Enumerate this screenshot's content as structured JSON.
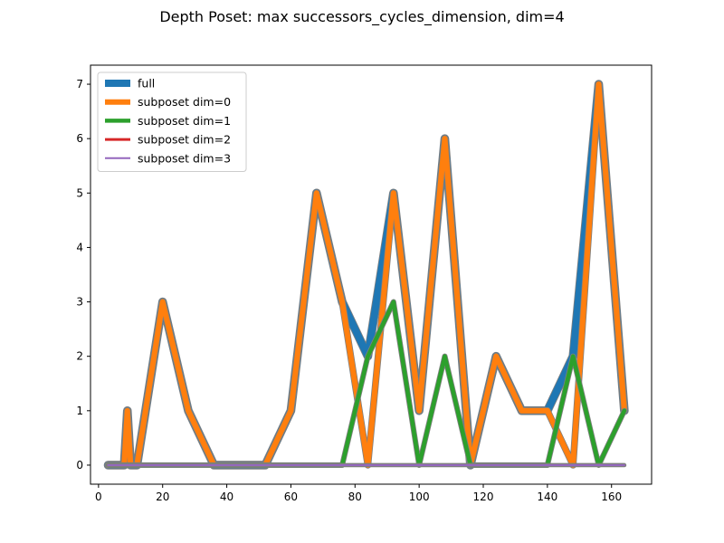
{
  "chart_data": {
    "type": "line",
    "title": "Depth Poset: max successors_cycles_dimension, dim=4",
    "xlabel": "",
    "ylabel": "",
    "xlim": [
      -2.5,
      172.5
    ],
    "ylim": [
      -0.35,
      7.35
    ],
    "xticks": [
      0,
      20,
      40,
      60,
      80,
      100,
      120,
      140,
      160
    ],
    "yticks": [
      0,
      1,
      2,
      3,
      4,
      5,
      6,
      7
    ],
    "grid": false,
    "legend_position": "upper-left",
    "series": [
      {
        "name": "full",
        "color": "#1f77b4",
        "width": 8,
        "x": [
          3,
          8,
          9,
          10,
          12,
          20,
          28,
          36,
          44,
          52,
          60,
          68,
          76,
          84,
          92,
          100,
          108,
          116,
          124,
          132,
          140,
          148,
          156,
          164
        ],
        "y": [
          0,
          0,
          1,
          0,
          0,
          3,
          1,
          0,
          0,
          0,
          1,
          5,
          3,
          2,
          5,
          1,
          6,
          0,
          2,
          1,
          1,
          2,
          7,
          1
        ]
      },
      {
        "name": "subposet dim=0",
        "color": "#ff7f0e",
        "width": 6,
        "x": [
          3,
          8,
          9,
          10,
          12,
          20,
          28,
          36,
          44,
          52,
          60,
          68,
          76,
          84,
          92,
          100,
          108,
          116,
          124,
          132,
          140,
          148,
          156,
          164
        ],
        "y": [
          0,
          0,
          1,
          0,
          0,
          3,
          1,
          0,
          0,
          0,
          1,
          5,
          3,
          0,
          5,
          1,
          6,
          0,
          2,
          1,
          1,
          0,
          7,
          1
        ]
      },
      {
        "name": "subposet dim=1",
        "color": "#2ca02c",
        "width": 4.5,
        "x": [
          3,
          8,
          9,
          10,
          12,
          20,
          28,
          36,
          44,
          52,
          60,
          68,
          76,
          84,
          92,
          100,
          108,
          116,
          124,
          132,
          140,
          148,
          156,
          164
        ],
        "y": [
          0,
          0,
          0,
          0,
          0,
          0,
          0,
          0,
          0,
          0,
          0,
          0,
          0,
          2,
          3,
          0,
          2,
          0,
          0,
          0,
          0,
          2,
          0,
          1
        ]
      },
      {
        "name": "subposet dim=2",
        "color": "#d62728",
        "width": 3,
        "x": [
          3,
          164
        ],
        "y": [
          0,
          0
        ]
      },
      {
        "name": "subposet dim=3",
        "color": "#9467bd",
        "width": 2,
        "x": [
          3,
          164
        ],
        "y": [
          0,
          0
        ]
      }
    ]
  }
}
